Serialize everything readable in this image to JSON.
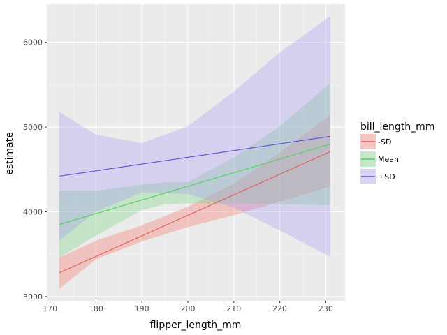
{
  "chart_data": {
    "type": "line",
    "xlabel": "flipper_length_mm",
    "ylabel": "estimate",
    "xlim": [
      169.3,
      234.2
    ],
    "ylim": [
      2950,
      6450
    ],
    "x_ticks": [
      170,
      180,
      190,
      200,
      210,
      220,
      230
    ],
    "x_tick_labels": [
      "170",
      "180",
      "190",
      "200",
      "210",
      "220",
      "230"
    ],
    "y_ticks": [
      3000,
      4000,
      5000,
      6000
    ],
    "y_tick_labels": [
      "3000",
      "4000",
      "5000",
      "6000"
    ],
    "grid": true,
    "legend": {
      "title": "bill_length_mm",
      "position": "right"
    },
    "series": [
      {
        "name": "-SD",
        "color": "#e15f55",
        "fill": "#f8766d",
        "x": [
          172,
          231
        ],
        "values": [
          3280,
          4710
        ],
        "ribbon_x": [
          172,
          180,
          190,
          200,
          210,
          220,
          231
        ],
        "ribbon_lower": [
          3090,
          3440,
          3650,
          3820,
          3960,
          4120,
          4300
        ],
        "ribbon_upper": [
          3460,
          3660,
          3840,
          4060,
          4330,
          4700,
          5140
        ]
      },
      {
        "name": "Mean",
        "color": "#4bd35a",
        "fill": "#7cd483",
        "x": [
          172,
          231
        ],
        "values": [
          3850,
          4800
        ],
        "ribbon_x": [
          172,
          180,
          190,
          195,
          200,
          210,
          220,
          231
        ],
        "ribbon_lower": [
          3460,
          3720,
          4020,
          4090,
          4100,
          4100,
          4090,
          4080
        ],
        "ribbon_upper": [
          4250,
          4250,
          4320,
          4350,
          4350,
          4640,
          5010,
          5520
        ]
      },
      {
        "name": "+SD",
        "color": "#5b50d8",
        "fill": "#a89ef0",
        "x": [
          172,
          231
        ],
        "values": [
          4420,
          4890
        ],
        "ribbon_x": [
          172,
          180,
          190,
          200,
          210,
          220,
          231
        ],
        "ribbon_lower": [
          3660,
          4000,
          4230,
          4210,
          4050,
          3780,
          3470
        ],
        "ribbon_upper": [
          5180,
          4910,
          4810,
          5010,
          5420,
          5880,
          6310
        ]
      }
    ]
  }
}
